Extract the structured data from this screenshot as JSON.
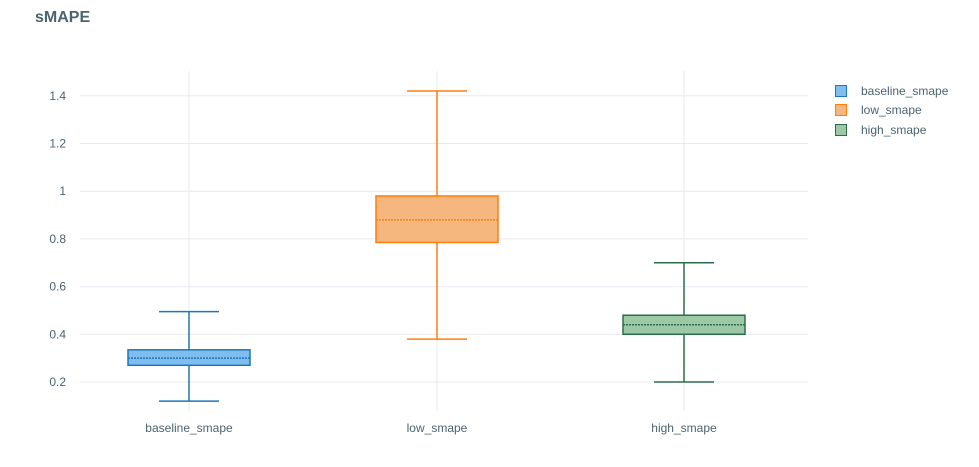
{
  "chart_data": {
    "type": "box",
    "title": "sMAPE",
    "xlabel": "",
    "ylabel": "",
    "ylim": [
      0.08,
      1.5
    ],
    "yticks": [
      0.2,
      0.4,
      0.6,
      0.8,
      1,
      1.2,
      1.4
    ],
    "ytick_labels": [
      "0.2",
      "0.4",
      "0.6",
      "0.8",
      "1",
      "1.2",
      "1.4"
    ],
    "grid": true,
    "legend_position": "top-right",
    "categories": [
      "baseline_smape",
      "low_smape",
      "high_smape"
    ],
    "series": [
      {
        "name": "baseline_smape",
        "category": "baseline_smape",
        "min": 0.12,
        "q1": 0.27,
        "median": 0.3,
        "q3": 0.335,
        "max": 0.495,
        "color": "#1f77b4",
        "fill": "#7fbdf0"
      },
      {
        "name": "low_smape",
        "category": "low_smape",
        "min": 0.38,
        "q1": 0.785,
        "median": 0.88,
        "q3": 0.98,
        "max": 1.42,
        "color": "#ff7f0e",
        "fill": "#f6b77e"
      },
      {
        "name": "high_smape",
        "category": "high_smape",
        "min": 0.2,
        "q1": 0.4,
        "median": 0.44,
        "q3": 0.48,
        "max": 0.7,
        "color": "#2e6b4c",
        "fill": "#9cc8a6"
      }
    ]
  }
}
